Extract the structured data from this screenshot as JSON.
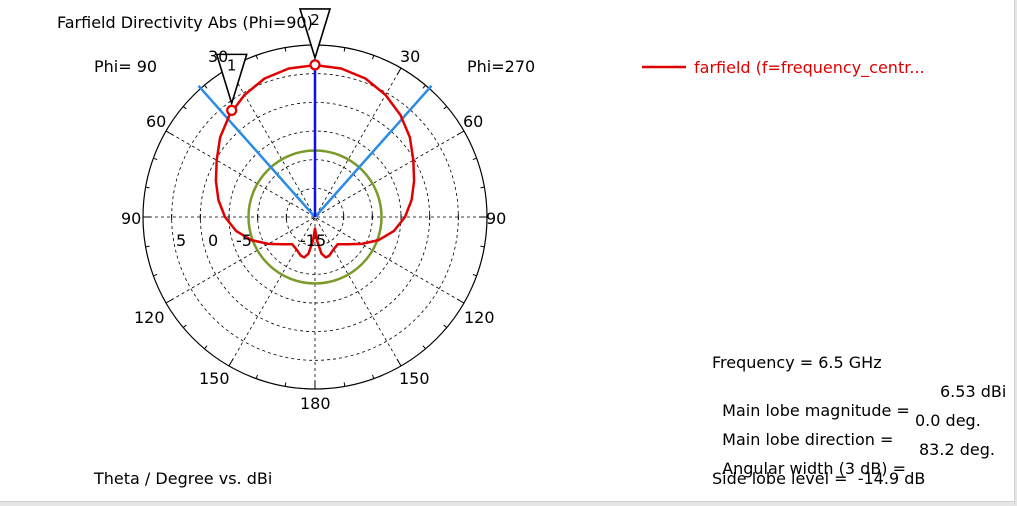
{
  "chart_data": {
    "type": "polar",
    "title": "Farfield Directivity Abs (Phi=90)",
    "left_half_label": "Phi= 90",
    "right_half_label": "Phi=270",
    "xlabel": "Theta / Degree vs. dBi",
    "angle_labels": {
      "top": "30",
      "side": [
        "30",
        "60",
        "90",
        "120",
        "150"
      ],
      "bottom": "180"
    },
    "radial_labels": [
      "5",
      "0",
      "-5",
      "-15"
    ],
    "rlim": [
      -20,
      10
    ],
    "series": [
      {
        "name": "farfield (f=frequency_centr...",
        "color": "#e00000",
        "theta_deg": [
          0,
          10,
          20,
          30,
          40,
          50,
          60,
          70,
          80,
          90,
          100,
          110,
          120,
          130,
          140,
          150,
          160,
          165,
          170,
          175,
          180,
          185,
          190,
          195,
          200,
          210,
          220,
          230,
          240,
          250,
          260,
          270,
          280,
          290,
          300,
          310,
          320,
          330,
          340,
          350,
          360
        ],
        "dbi": [
          6.5,
          6.3,
          5.7,
          4.6,
          3.2,
          1.6,
          -0.2,
          -1.6,
          -2.9,
          -4.3,
          -6.0,
          -8.2,
          -10.6,
          -12.6,
          -13.8,
          -13.5,
          -12.8,
          -12.7,
          -13.5,
          -15.9,
          -18.0,
          -15.9,
          -13.5,
          -12.7,
          -12.8,
          -13.5,
          -13.8,
          -12.6,
          -10.6,
          -8.2,
          -6.0,
          -4.3,
          -2.9,
          -1.6,
          -0.2,
          1.6,
          3.2,
          4.6,
          5.7,
          6.3,
          6.5
        ]
      }
    ],
    "reference_circle_dbi": -8.4,
    "beamwidth_lines_deg": [
      -41.6,
      41.6
    ],
    "markers": [
      {
        "label": "1",
        "theta_deg": -38,
        "dbi": 3.6
      },
      {
        "label": "2",
        "theta_deg": 0,
        "dbi": 6.53
      }
    ],
    "grid": true,
    "legend_position": "top-right",
    "colors": {
      "main": "#e00000",
      "beamwidth": "#2b8be6",
      "main_direction": "#1010e0",
      "reference": "#7a9a2a",
      "grid": "#000000"
    }
  },
  "results": {
    "frequency": "Frequency = 6.5 GHz",
    "mag_label": "Main lobe magnitude =",
    "mag_value": "6.53 dBi",
    "dir_label": "Main lobe direction =",
    "dir_value": "0.0 deg.",
    "width_label": "Angular width (3 dB) =",
    "width_value": "83.2 deg.",
    "sidelobe": "Side lobe level =  -14.9 dB"
  }
}
